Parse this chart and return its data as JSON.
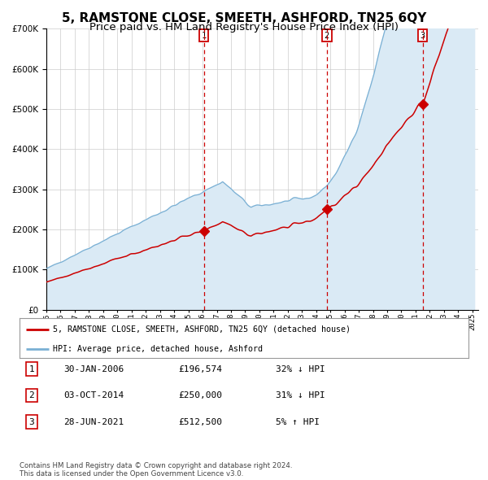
{
  "title": "5, RAMSTONE CLOSE, SMEETH, ASHFORD, TN25 6QY",
  "subtitle": "Price paid vs. HM Land Registry's House Price Index (HPI)",
  "legend_label_red": "5, RAMSTONE CLOSE, SMEETH, ASHFORD, TN25 6QY (detached house)",
  "legend_label_blue": "HPI: Average price, detached house, Ashford",
  "sale_dates_str": [
    "30-JAN-2006",
    "03-OCT-2014",
    "28-JUN-2021"
  ],
  "sale_prices": [
    196574,
    250000,
    512500
  ],
  "sale_labels": [
    "1",
    "2",
    "3"
  ],
  "sale_hpi_pct": [
    "32% ↓ HPI",
    "31% ↓ HPI",
    "5% ↑ HPI"
  ],
  "ylim": [
    0,
    700000
  ],
  "yticks": [
    0,
    100000,
    200000,
    300000,
    400000,
    500000,
    600000,
    700000
  ],
  "red_color": "#cc0000",
  "blue_color": "#7ab0d4",
  "blue_fill_color": "#daeaf5",
  "grid_color": "#cccccc",
  "vline_color": "#cc0000",
  "background_color": "#ffffff",
  "copyright_text": "Contains HM Land Registry data © Crown copyright and database right 2024.\nThis data is licensed under the Open Government Licence v3.0.",
  "title_fontsize": 11,
  "subtitle_fontsize": 9.5,
  "axis_fontsize": 7,
  "legend_fontsize": 7.5,
  "table_fontsize": 8
}
